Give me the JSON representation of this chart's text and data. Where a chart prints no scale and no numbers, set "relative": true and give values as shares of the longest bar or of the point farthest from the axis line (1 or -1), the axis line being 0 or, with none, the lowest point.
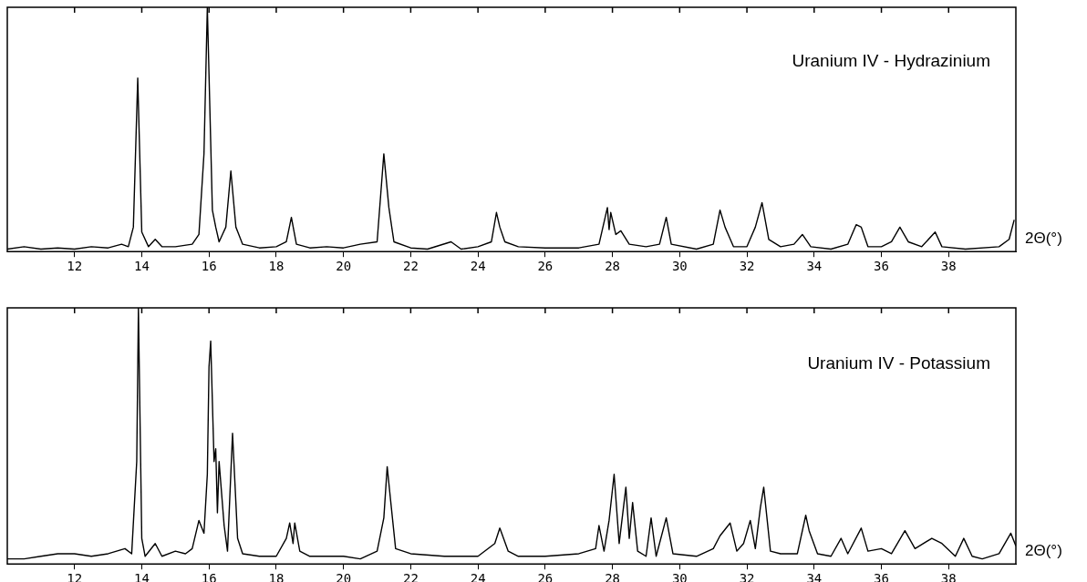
{
  "chart_data": [
    {
      "type": "line",
      "relative": true,
      "xlabel": "2Θ(°)",
      "annotations": [
        "Uranium IV - Hydrazinium"
      ],
      "xlim": [
        10,
        40
      ],
      "xticks": [
        12,
        14,
        16,
        18,
        20,
        22,
        24,
        26,
        28,
        30,
        32,
        34,
        36,
        38
      ],
      "grid": false,
      "legend": false,
      "marker": "none",
      "line_style": "solid",
      "series": [
        {
          "color": "#000000",
          "x": [
            10,
            10.5,
            11,
            11.5,
            12,
            12.5,
            13,
            13.4,
            13.6,
            13.75,
            13.88,
            14,
            14.2,
            14.4,
            14.6,
            15,
            15.5,
            15.7,
            15.85,
            15.95,
            16.05,
            16.1,
            16.2,
            16.3,
            16.5,
            16.65,
            16.8,
            17,
            17.5,
            18,
            18.3,
            18.45,
            18.6,
            19,
            19.5,
            20,
            20.5,
            21,
            21.2,
            21.35,
            21.5,
            22,
            22.5,
            23.2,
            23.5,
            24,
            24.4,
            24.55,
            24.65,
            24.8,
            25.2,
            26,
            27,
            27.6,
            27.85,
            27.9,
            27.95,
            28.1,
            28.25,
            28.5,
            29,
            29.4,
            29.6,
            29.75,
            30.5,
            31,
            31.2,
            31.35,
            31.6,
            32,
            32.25,
            32.45,
            32.65,
            33,
            33.4,
            33.65,
            33.9,
            34.5,
            35,
            35.25,
            35.4,
            35.6,
            36,
            36.3,
            36.55,
            36.8,
            37.2,
            37.6,
            37.8,
            38.5,
            39.5,
            39.8,
            39.95
          ],
          "values": [
            0.01,
            0.02,
            0.01,
            0.015,
            0.01,
            0.02,
            0.015,
            0.03,
            0.02,
            0.1,
            0.71,
            0.08,
            0.02,
            0.05,
            0.02,
            0.02,
            0.03,
            0.07,
            0.4,
            1,
            0.45,
            0.17,
            0.1,
            0.04,
            0.1,
            0.33,
            0.1,
            0.03,
            0.015,
            0.02,
            0.04,
            0.14,
            0.03,
            0.015,
            0.02,
            0.015,
            0.03,
            0.04,
            0.4,
            0.18,
            0.04,
            0.015,
            0.01,
            0.04,
            0.01,
            0.02,
            0.04,
            0.16,
            0.1,
            0.04,
            0.02,
            0.015,
            0.015,
            0.03,
            0.18,
            0.09,
            0.16,
            0.07,
            0.085,
            0.03,
            0.02,
            0.03,
            0.14,
            0.03,
            0.01,
            0.03,
            0.17,
            0.1,
            0.02,
            0.02,
            0.1,
            0.2,
            0.05,
            0.02,
            0.03,
            0.07,
            0.02,
            0.01,
            0.03,
            0.11,
            0.1,
            0.02,
            0.02,
            0.04,
            0.1,
            0.04,
            0.02,
            0.08,
            0.02,
            0.01,
            0.02,
            0.05,
            0.13
          ]
        }
      ]
    },
    {
      "type": "line",
      "relative": true,
      "xlabel": "2Θ(°)",
      "annotations": [
        "Uranium IV - Potassium"
      ],
      "xlim": [
        10,
        40
      ],
      "xticks": [
        12,
        14,
        16,
        18,
        20,
        22,
        24,
        26,
        28,
        30,
        32,
        34,
        36,
        38
      ],
      "grid": false,
      "legend": false,
      "marker": "none",
      "line_style": "solid",
      "series": [
        {
          "color": "#000000",
          "x": [
            10,
            10.5,
            11,
            11.5,
            12,
            12.5,
            13,
            13.5,
            13.7,
            13.85,
            13.9,
            14,
            14.1,
            14.4,
            14.6,
            15,
            15.3,
            15.5,
            15.7,
            15.85,
            15.95,
            16,
            16.05,
            16.15,
            16.2,
            16.25,
            16.3,
            16.45,
            16.55,
            16.7,
            16.85,
            17,
            17.5,
            18,
            18.3,
            18.4,
            18.5,
            18.55,
            18.7,
            19,
            19.5,
            20,
            20.5,
            21,
            21.2,
            21.3,
            21.4,
            21.55,
            22,
            23,
            24,
            24.5,
            24.65,
            24.9,
            25.2,
            26,
            27,
            27.5,
            27.6,
            27.75,
            27.9,
            28.05,
            28.2,
            28.4,
            28.5,
            28.6,
            28.75,
            29,
            29.15,
            29.3,
            29.6,
            29.8,
            30.5,
            31,
            31.2,
            31.5,
            31.7,
            31.9,
            32.1,
            32.25,
            32.4,
            32.5,
            32.7,
            33,
            33.5,
            33.75,
            33.85,
            34.1,
            34.5,
            34.8,
            35,
            35.4,
            35.6,
            36,
            36.3,
            36.7,
            37,
            37.5,
            37.8,
            38.2,
            38.45,
            38.7,
            39,
            39.5,
            39.85,
            40
          ],
          "values": [
            0.02,
            0.02,
            0.03,
            0.04,
            0.04,
            0.03,
            0.04,
            0.06,
            0.04,
            0.4,
            1,
            0.1,
            0.03,
            0.08,
            0.03,
            0.05,
            0.04,
            0.06,
            0.17,
            0.12,
            0.35,
            0.77,
            0.87,
            0.4,
            0.45,
            0.2,
            0.4,
            0.15,
            0.05,
            0.51,
            0.1,
            0.04,
            0.03,
            0.03,
            0.1,
            0.16,
            0.08,
            0.16,
            0.05,
            0.03,
            0.03,
            0.03,
            0.02,
            0.05,
            0.18,
            0.38,
            0.25,
            0.06,
            0.04,
            0.03,
            0.03,
            0.08,
            0.14,
            0.05,
            0.03,
            0.03,
            0.04,
            0.06,
            0.15,
            0.05,
            0.17,
            0.35,
            0.08,
            0.3,
            0.1,
            0.24,
            0.05,
            0.03,
            0.18,
            0.03,
            0.18,
            0.04,
            0.03,
            0.06,
            0.11,
            0.16,
            0.05,
            0.08,
            0.17,
            0.06,
            0.22,
            0.3,
            0.05,
            0.04,
            0.04,
            0.19,
            0.13,
            0.04,
            0.03,
            0.1,
            0.04,
            0.14,
            0.05,
            0.06,
            0.04,
            0.13,
            0.06,
            0.1,
            0.08,
            0.03,
            0.1,
            0.03,
            0.02,
            0.04,
            0.12,
            0.07
          ]
        }
      ]
    }
  ]
}
